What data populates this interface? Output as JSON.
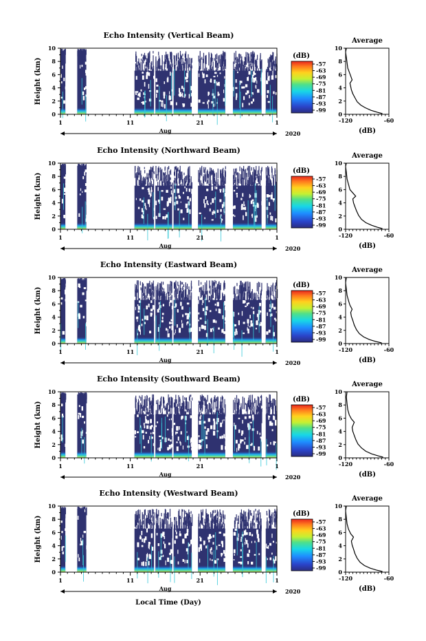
{
  "chart_data": [
    {
      "type": "heatmap",
      "title": "Echo Intensity (Vertical Beam)",
      "ylabel": "Height (km)",
      "ylim": [
        0,
        10
      ],
      "yticks": [
        "0",
        "2",
        "4",
        "6",
        "8",
        "10"
      ],
      "xticks": [
        "1",
        "11",
        "21",
        "1"
      ],
      "xrange_days": [
        1,
        32
      ],
      "month_label": "Aug",
      "year_label": "2020",
      "colorbar": {
        "unit": "(dB)",
        "labels": [
          "-57",
          "-63",
          "-69",
          "-75",
          "-81",
          "-87",
          "-93",
          "-99"
        ]
      },
      "data_periods_days": [
        [
          1.0,
          1.7
        ],
        [
          3.4,
          4.7
        ],
        [
          11.6,
          14.4
        ],
        [
          14.6,
          17.0
        ],
        [
          17.2,
          19.8
        ],
        [
          20.7,
          24.6
        ],
        [
          25.7,
          29.8
        ],
        [
          30.4,
          32.0
        ]
      ],
      "profile": {
        "title": "Average",
        "xlabel": "(dB)",
        "xlim": [
          -120,
          -60
        ],
        "xticks": [
          "-120",
          "-60"
        ],
        "ylim": [
          0,
          10
        ],
        "points": [
          [
            -69,
            0.1
          ],
          [
            -76,
            0.3
          ],
          [
            -85,
            0.6
          ],
          [
            -93,
            1.0
          ],
          [
            -99,
            1.4
          ],
          [
            -104,
            1.9
          ],
          [
            -107,
            2.5
          ],
          [
            -110,
            3.1
          ],
          [
            -112,
            3.7
          ],
          [
            -113,
            4.2
          ],
          [
            -114,
            4.7
          ],
          [
            -111,
            5.2
          ],
          [
            -113,
            5.8
          ],
          [
            -115,
            6.4
          ],
          [
            -117,
            7.0
          ],
          [
            -118,
            7.8
          ],
          [
            -119,
            8.6
          ],
          [
            -120,
            9.4
          ],
          [
            -119,
            10.0
          ]
        ]
      }
    },
    {
      "type": "heatmap",
      "title": "Echo Intensity (Northward Beam)",
      "ylabel": "Height (km)",
      "ylim": [
        0,
        10
      ],
      "yticks": [
        "0",
        "2",
        "4",
        "6",
        "8",
        "10"
      ],
      "xticks": [
        "1",
        "11",
        "21",
        "1"
      ],
      "xrange_days": [
        1,
        32
      ],
      "month_label": "Aug",
      "year_label": "2020",
      "colorbar": {
        "unit": "(dB)",
        "labels": [
          "-57",
          "-63",
          "-69",
          "-75",
          "-81",
          "-87",
          "-93",
          "-99"
        ]
      },
      "data_periods_days": [
        [
          1.0,
          1.7
        ],
        [
          3.4,
          4.7
        ],
        [
          11.6,
          14.4
        ],
        [
          14.6,
          17.0
        ],
        [
          17.2,
          19.8
        ],
        [
          20.7,
          24.6
        ],
        [
          25.7,
          29.8
        ],
        [
          30.4,
          32.0
        ]
      ],
      "profile": {
        "title": "Average",
        "xlabel": "(dB)",
        "xlim": [
          -120,
          -60
        ],
        "xticks": [
          "-120",
          "-60"
        ],
        "ylim": [
          0,
          10
        ],
        "points": [
          [
            -69,
            0.1
          ],
          [
            -76,
            0.3
          ],
          [
            -84,
            0.6
          ],
          [
            -92,
            1.0
          ],
          [
            -98,
            1.5
          ],
          [
            -102,
            2.1
          ],
          [
            -105,
            2.8
          ],
          [
            -107,
            3.4
          ],
          [
            -109,
            4.0
          ],
          [
            -110,
            4.6
          ],
          [
            -106,
            5.0
          ],
          [
            -110,
            5.5
          ],
          [
            -114,
            6.0
          ],
          [
            -116,
            6.8
          ],
          [
            -118,
            7.6
          ],
          [
            -119,
            8.6
          ],
          [
            -120,
            9.5
          ],
          [
            -119,
            10.0
          ]
        ]
      }
    },
    {
      "type": "heatmap",
      "title": "Echo Intensity (Eastward Beam)",
      "ylabel": "Height (km)",
      "ylim": [
        0,
        10
      ],
      "yticks": [
        "0",
        "2",
        "4",
        "6",
        "8",
        "10"
      ],
      "xticks": [
        "1",
        "11",
        "21",
        "1"
      ],
      "xrange_days": [
        1,
        32
      ],
      "month_label": "Aug",
      "year_label": "2020",
      "colorbar": {
        "unit": "(dB)",
        "labels": [
          "-57",
          "-63",
          "-69",
          "-75",
          "-81",
          "-87",
          "-93",
          "-99"
        ]
      },
      "data_periods_days": [
        [
          1.0,
          1.7
        ],
        [
          3.4,
          4.7
        ],
        [
          11.6,
          14.4
        ],
        [
          14.6,
          17.0
        ],
        [
          17.2,
          19.8
        ],
        [
          20.7,
          24.6
        ],
        [
          25.7,
          29.8
        ],
        [
          30.4,
          32.0
        ]
      ],
      "profile": {
        "title": "Average",
        "xlabel": "(dB)",
        "xlim": [
          -120,
          -60
        ],
        "xticks": [
          "-120",
          "-60"
        ],
        "ylim": [
          0,
          10
        ],
        "points": [
          [
            -70,
            0.1
          ],
          [
            -78,
            0.3
          ],
          [
            -87,
            0.6
          ],
          [
            -95,
            1.0
          ],
          [
            -101,
            1.5
          ],
          [
            -105,
            2.1
          ],
          [
            -108,
            2.8
          ],
          [
            -110,
            3.5
          ],
          [
            -112,
            4.1
          ],
          [
            -113,
            4.7
          ],
          [
            -111,
            5.2
          ],
          [
            -114,
            5.8
          ],
          [
            -116,
            6.5
          ],
          [
            -118,
            7.3
          ],
          [
            -119,
            8.2
          ],
          [
            -120,
            9.2
          ],
          [
            -119,
            10.0
          ]
        ]
      }
    },
    {
      "type": "heatmap",
      "title": "Echo Intensity (Southward Beam)",
      "ylabel": "Height (km)",
      "ylim": [
        0,
        10
      ],
      "yticks": [
        "0",
        "2",
        "4",
        "6",
        "8",
        "10"
      ],
      "xticks": [
        "1",
        "11",
        "21",
        "1"
      ],
      "xrange_days": [
        1,
        32
      ],
      "month_label": "Aug",
      "year_label": "2020",
      "colorbar": {
        "unit": "(dB)",
        "labels": [
          "-57",
          "-63",
          "-69",
          "-75",
          "-81",
          "-87",
          "-93",
          "-99"
        ]
      },
      "data_periods_days": [
        [
          1.0,
          1.7
        ],
        [
          3.4,
          4.7
        ],
        [
          11.6,
          14.4
        ],
        [
          14.6,
          17.0
        ],
        [
          17.2,
          19.8
        ],
        [
          20.7,
          24.6
        ],
        [
          25.7,
          29.8
        ],
        [
          30.4,
          32.0
        ]
      ],
      "profile": {
        "title": "Average",
        "xlabel": "(dB)",
        "xlim": [
          -120,
          -60
        ],
        "xticks": [
          "-120",
          "-60"
        ],
        "ylim": [
          0,
          10
        ],
        "points": [
          [
            -68,
            0.1
          ],
          [
            -75,
            0.3
          ],
          [
            -84,
            0.6
          ],
          [
            -92,
            1.0
          ],
          [
            -98,
            1.5
          ],
          [
            -103,
            2.1
          ],
          [
            -106,
            2.8
          ],
          [
            -108,
            3.4
          ],
          [
            -110,
            4.0
          ],
          [
            -111,
            4.6
          ],
          [
            -108,
            5.4
          ],
          [
            -112,
            5.9
          ],
          [
            -115,
            6.5
          ],
          [
            -117,
            7.3
          ],
          [
            -118,
            8.2
          ],
          [
            -119,
            9.2
          ],
          [
            -118,
            10.0
          ]
        ]
      }
    },
    {
      "type": "heatmap",
      "title": "Echo Intensity (Westward Beam)",
      "ylabel": "Height (km)",
      "ylim": [
        0,
        10
      ],
      "yticks": [
        "0",
        "2",
        "4",
        "6",
        "8",
        "10"
      ],
      "xticks": [
        "1",
        "11",
        "21",
        "1"
      ],
      "xrange_days": [
        1,
        32
      ],
      "month_label": "Aug",
      "year_label": "2020",
      "xlabel": "Local Time (Day)",
      "colorbar": {
        "unit": "(dB)",
        "labels": [
          "-57",
          "-63",
          "-69",
          "-75",
          "-81",
          "-87",
          "-93",
          "-99"
        ]
      },
      "data_periods_days": [
        [
          1.0,
          1.7
        ],
        [
          3.4,
          4.7
        ],
        [
          11.6,
          14.4
        ],
        [
          14.6,
          17.0
        ],
        [
          17.2,
          19.8
        ],
        [
          20.7,
          24.6
        ],
        [
          25.7,
          29.8
        ],
        [
          30.4,
          32.0
        ]
      ],
      "profile": {
        "title": "Average",
        "xlabel": "(dB)",
        "xlim": [
          -120,
          -60
        ],
        "xticks": [
          "-120",
          "-60"
        ],
        "ylim": [
          0,
          10
        ],
        "points": [
          [
            -69,
            0.1
          ],
          [
            -77,
            0.3
          ],
          [
            -86,
            0.6
          ],
          [
            -94,
            1.0
          ],
          [
            -100,
            1.5
          ],
          [
            -104,
            2.1
          ],
          [
            -107,
            2.8
          ],
          [
            -109,
            3.5
          ],
          [
            -111,
            4.1
          ],
          [
            -112,
            4.7
          ],
          [
            -109,
            5.3
          ],
          [
            -113,
            5.8
          ],
          [
            -116,
            6.5
          ],
          [
            -118,
            7.3
          ],
          [
            -119,
            8.2
          ],
          [
            -120,
            9.3
          ],
          [
            -119,
            10.0
          ]
        ]
      }
    }
  ]
}
